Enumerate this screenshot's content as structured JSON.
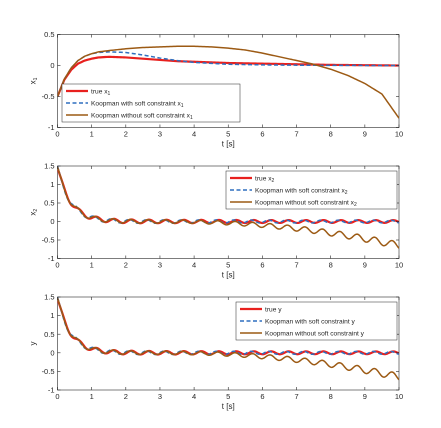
{
  "chart_data": [
    {
      "type": "line",
      "xlabel": "t [s]",
      "ylabel": "x",
      "ylabel_sub": "1",
      "xlim": [
        0,
        10
      ],
      "ylim": [
        -1,
        0.5
      ],
      "xticks": [
        "0",
        "1",
        "2",
        "3",
        "4",
        "5",
        "6",
        "7",
        "8",
        "9",
        "10"
      ],
      "yticks": [
        "-1",
        "-0.5",
        "0",
        "0.5"
      ],
      "legend": "bottom-left",
      "grid": false,
      "series": [
        {
          "name": "true x",
          "sub": "1",
          "color": "#e8201e",
          "style": "solid",
          "x": [
            0,
            0.2,
            0.4,
            0.6,
            0.8,
            1.0,
            1.2,
            1.5,
            2.0,
            2.5,
            3.0,
            3.5,
            4.0,
            5.0,
            6.0,
            7.0,
            8.0,
            9.0,
            10.0
          ],
          "y": [
            -0.5,
            -0.23,
            -0.07,
            0.03,
            0.08,
            0.11,
            0.13,
            0.14,
            0.13,
            0.11,
            0.09,
            0.07,
            0.06,
            0.04,
            0.03,
            0.02,
            0.01,
            0.005,
            0.0
          ]
        },
        {
          "name": "Koopman with soft constraint x",
          "sub": "1",
          "color": "#2f6fbf",
          "style": "dashed",
          "x": [
            0,
            0.2,
            0.4,
            0.6,
            0.8,
            1.0,
            1.2,
            1.5,
            2.0,
            2.5,
            3.0,
            3.5,
            4.0,
            5.0,
            6.0,
            7.0,
            8.0,
            9.0,
            10.0
          ],
          "y": [
            -0.5,
            -0.22,
            -0.04,
            0.08,
            0.15,
            0.19,
            0.21,
            0.22,
            0.21,
            0.17,
            0.12,
            0.08,
            0.05,
            0.02,
            0.01,
            0.005,
            0.002,
            0.001,
            0.0
          ]
        },
        {
          "name": "Koopman without soft constraint x",
          "sub": "1",
          "color": "#9c5a14",
          "style": "solid",
          "x": [
            0,
            0.2,
            0.4,
            0.6,
            0.8,
            1.0,
            1.2,
            1.5,
            2.0,
            2.5,
            3.0,
            3.5,
            4.0,
            4.5,
            5.0,
            5.5,
            6.0,
            6.5,
            7.0,
            7.5,
            8.0,
            8.5,
            9.0,
            9.5,
            10.0
          ],
          "y": [
            -0.5,
            -0.22,
            -0.04,
            0.08,
            0.15,
            0.19,
            0.22,
            0.24,
            0.27,
            0.29,
            0.3,
            0.31,
            0.31,
            0.3,
            0.28,
            0.25,
            0.2,
            0.14,
            0.08,
            0.02,
            -0.06,
            -0.16,
            -0.29,
            -0.46,
            -0.85
          ]
        }
      ]
    },
    {
      "type": "line",
      "xlabel": "t [s]",
      "ylabel": "x",
      "ylabel_sub": "2",
      "xlim": [
        0,
        10
      ],
      "ylim": [
        -1,
        1.5
      ],
      "xticks": [
        "0",
        "1",
        "2",
        "3",
        "4",
        "5",
        "6",
        "7",
        "8",
        "9",
        "10"
      ],
      "yticks": [
        "-1",
        "-0.5",
        "0",
        "0.5",
        "1",
        "1.5"
      ],
      "legend": "top-right",
      "grid": false,
      "series": [
        {
          "name": "true x",
          "sub": "2",
          "color": "#e8201e",
          "style": "solid"
        },
        {
          "name": "Koopman with soft constraint x",
          "sub": "2",
          "color": "#2f6fbf",
          "style": "dashed"
        },
        {
          "name": "Koopman without soft constraint x",
          "sub": "2",
          "color": "#9c5a14",
          "style": "solid"
        }
      ]
    },
    {
      "type": "line",
      "xlabel": "t [s]",
      "ylabel": "y",
      "ylabel_sub": "",
      "xlim": [
        0,
        10
      ],
      "ylim": [
        -1,
        1.5
      ],
      "xticks": [
        "0",
        "1",
        "2",
        "3",
        "4",
        "5",
        "6",
        "7",
        "8",
        "9",
        "10"
      ],
      "yticks": [
        "-1",
        "-0.5",
        "0",
        "0.5",
        "1",
        "1.5"
      ],
      "legend": "top-right",
      "grid": false,
      "series": [
        {
          "name": "true y",
          "sub": "",
          "color": "#e8201e",
          "style": "solid"
        },
        {
          "name": "Koopman with soft constraint y",
          "sub": "",
          "color": "#2f6fbf",
          "style": "dashed"
        },
        {
          "name": "Koopman without soft constraint y",
          "sub": "",
          "color": "#9c5a14",
          "style": "solid"
        }
      ]
    }
  ]
}
